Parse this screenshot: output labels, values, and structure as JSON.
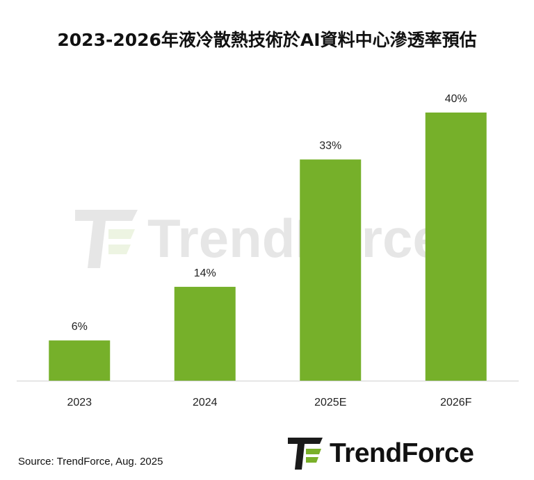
{
  "title": "2023-2026年液冷散熱技術於AI資料中心滲透率預估",
  "source": "Source: TrendForce, Aug. 2025",
  "brand": {
    "logo_text": "TrendForce",
    "watermark_text": "TrendForce",
    "logo_color": "#1a1a1a",
    "logo_accent": "#7ab02a"
  },
  "chart_data": {
    "type": "bar",
    "categories": [
      "2023",
      "2024",
      "2025E",
      "2026F"
    ],
    "values": [
      6,
      14,
      33,
      40
    ],
    "data_labels": [
      "6%",
      "14%",
      "33%",
      "40%"
    ],
    "title": "2023-2026年液冷散熱技術於AI資料中心滲透率預估",
    "xlabel": "",
    "ylabel": "",
    "ylim": [
      0,
      40
    ],
    "bar_color": "#76b02a",
    "grid": false,
    "legend": "none"
  }
}
